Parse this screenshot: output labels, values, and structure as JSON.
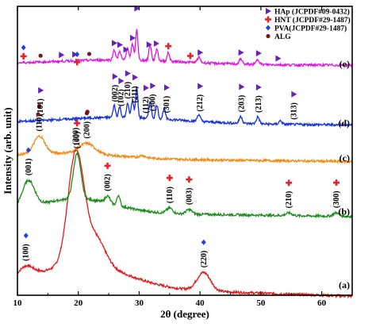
{
  "chart_data": {
    "type": "line",
    "xlabel": "2θ (degree)",
    "ylabel": "Intensity (arb. unit)",
    "xlim": [
      10,
      65
    ],
    "xticks": [
      10,
      20,
      30,
      40,
      50,
      60
    ],
    "y_ticks_shown": false,
    "grid": false,
    "legend_position": "top-right",
    "legend": [
      {
        "label": "HAp (JCPDF#09-0432)",
        "marker": "triangle-right",
        "color": "#6a1fb8"
      },
      {
        "label": "HNT (JCPDF#29-1487)",
        "marker": "cross",
        "color": "#e8202a"
      },
      {
        "label": "PVA(JCPDF#29-1487)",
        "marker": "diamond",
        "color": "#1f3fd8"
      },
      {
        "label": "ALG",
        "marker": "circle",
        "color": "#7a1616"
      }
    ],
    "series": [
      {
        "name": "(a)",
        "color": "#e01818",
        "baseline": 0,
        "peaks": [
          {
            "x": 11.4,
            "height": 0.6,
            "width": 1.2
          },
          {
            "x": 19.6,
            "height": 6.4,
            "width": 1.3
          },
          {
            "x": 22.8,
            "height": 1.6,
            "width": 1.6
          },
          {
            "x": 40.6,
            "height": 1.05,
            "width": 1.1
          }
        ],
        "hump": {
          "x": 21,
          "height": 1.3,
          "width": 7
        },
        "slope": -0.012,
        "annotations": [
          {
            "x": 11.4,
            "label": "(100)",
            "marker": "diamond"
          },
          {
            "x": 19.6,
            "label": "(200)",
            "marker": "diamond"
          },
          {
            "x": 40.6,
            "label": "(220)",
            "marker": "diamond"
          }
        ]
      },
      {
        "name": "(b)",
        "color": "#1c8c1c",
        "baseline": 4.2,
        "peaks": [
          {
            "x": 11.8,
            "height": 1.5,
            "width": 1.0
          },
          {
            "x": 19.8,
            "height": 2.6,
            "width": 0.6
          },
          {
            "x": 24.8,
            "height": 0.4,
            "width": 0.4
          },
          {
            "x": 26.6,
            "height": 0.6,
            "width": 0.25
          },
          {
            "x": 35.0,
            "height": 0.3,
            "width": 0.5
          },
          {
            "x": 38.2,
            "height": 0.25,
            "width": 0.5
          },
          {
            "x": 54.6,
            "height": 0.15,
            "width": 0.5
          },
          {
            "x": 62.4,
            "height": 0.2,
            "width": 0.5
          }
        ],
        "hump": {
          "x": 20,
          "height": 0.8,
          "width": 6
        },
        "slope": -0.005,
        "annotations": [
          {
            "x": 11.8,
            "label": "(001)",
            "marker": "diamond"
          },
          {
            "x": 19.8,
            "label": "(100)",
            "marker": "cross"
          },
          {
            "x": 24.8,
            "label": "(002)",
            "marker": "cross"
          },
          {
            "x": 35.0,
            "label": "(110)",
            "marker": "cross"
          },
          {
            "x": 38.2,
            "label": "(003)",
            "marker": "cross"
          },
          {
            "x": 54.6,
            "label": "(210)",
            "marker": "cross"
          },
          {
            "x": 62.4,
            "label": "(300)",
            "marker": "cross"
          }
        ]
      },
      {
        "name": "(c)",
        "color": "#f08a10",
        "baseline": 7.3,
        "peaks": [
          {
            "x": 13.6,
            "height": 1.0,
            "width": 0.9
          },
          {
            "x": 21.4,
            "height": 0.6,
            "width": 1.3
          },
          {
            "x": 30.5,
            "height": 0.12,
            "width": 0.5
          }
        ],
        "hump": {
          "x": 18,
          "height": 0.3,
          "width": 8
        },
        "slope": -0.004,
        "annotations": [
          {
            "x": 13.6,
            "label": "(110)",
            "marker": "circle"
          },
          {
            "x": 21.4,
            "label": "(200)",
            "marker": "circle"
          }
        ]
      },
      {
        "name": "(d)",
        "color": "#1430d8",
        "baseline": 9.3,
        "peaks": [
          {
            "x": 25.9,
            "height": 0.7,
            "width": 0.2
          },
          {
            "x": 26.8,
            "height": 0.6,
            "width": 0.2
          },
          {
            "x": 28.1,
            "height": 0.8,
            "width": 0.2
          },
          {
            "x": 28.9,
            "height": 1.0,
            "width": 0.2
          },
          {
            "x": 29.6,
            "height": 1.8,
            "width": 0.18
          },
          {
            "x": 31.8,
            "height": 1.0,
            "width": 0.2
          },
          {
            "x": 32.9,
            "height": 0.8,
            "width": 0.2
          },
          {
            "x": 34.1,
            "height": 0.6,
            "width": 0.2
          },
          {
            "x": 39.8,
            "height": 0.4,
            "width": 0.25
          },
          {
            "x": 46.7,
            "height": 0.4,
            "width": 0.25
          },
          {
            "x": 49.5,
            "height": 0.4,
            "width": 0.25
          },
          {
            "x": 53.2,
            "height": 0.2,
            "width": 0.25
          }
        ],
        "hump": {
          "x": 27,
          "height": 0.35,
          "width": 10
        },
        "slope": -0.002,
        "annotations": [
          {
            "x": 13.8,
            "label": "(101)",
            "marker": "triangle"
          },
          {
            "x": 26.0,
            "label": "(002)",
            "marker": "triangle"
          },
          {
            "x": 27.0,
            "label": "(102)",
            "marker": "triangle"
          },
          {
            "x": 28.1,
            "label": "(210)",
            "marker": "triangle"
          },
          {
            "x": 29.3,
            "label": "(211)",
            "marker": "triangle"
          },
          {
            "x": 31.1,
            "label": "(112)",
            "marker": "triangle"
          },
          {
            "x": 32.2,
            "label": "(300)",
            "marker": "triangle"
          },
          {
            "x": 34.5,
            "label": "(301)",
            "marker": "triangle"
          },
          {
            "x": 40.0,
            "label": "(212)",
            "marker": "triangle"
          },
          {
            "x": 46.8,
            "label": "(203)",
            "marker": "triangle"
          },
          {
            "x": 49.6,
            "label": "(213)",
            "marker": "triangle"
          },
          {
            "x": 55.4,
            "label": "(313)",
            "marker": "triangle"
          }
        ],
        "extra_markers": [
          {
            "x": 13.4,
            "marker": "circle"
          },
          {
            "x": 21.5,
            "marker": "circle"
          }
        ]
      },
      {
        "name": "(e)",
        "color": "#e016e0",
        "baseline": 12.7,
        "peaks": [
          {
            "x": 25.9,
            "height": 0.6,
            "width": 0.2
          },
          {
            "x": 26.8,
            "height": 0.5,
            "width": 0.2
          },
          {
            "x": 28.1,
            "height": 0.7,
            "width": 0.2
          },
          {
            "x": 28.9,
            "height": 0.9,
            "width": 0.2
          },
          {
            "x": 29.6,
            "height": 1.8,
            "width": 0.18
          },
          {
            "x": 31.8,
            "height": 0.9,
            "width": 0.2
          },
          {
            "x": 32.9,
            "height": 0.7,
            "width": 0.2
          },
          {
            "x": 34.8,
            "height": 0.5,
            "width": 0.2
          },
          {
            "x": 39.8,
            "height": 0.3,
            "width": 0.25
          },
          {
            "x": 46.7,
            "height": 0.3,
            "width": 0.25
          },
          {
            "x": 49.5,
            "height": 0.3,
            "width": 0.25
          }
        ],
        "hump": {
          "x": 27,
          "height": 0.25,
          "width": 10
        },
        "slope": -0.0015,
        "annotations": [],
        "extra_markers": [
          {
            "x": 11.0,
            "marker": "cross"
          },
          {
            "x": 11.0,
            "marker": "diamond",
            "dy": 0.5
          },
          {
            "x": 13.8,
            "marker": "circle"
          },
          {
            "x": 17.2,
            "marker": "triangle"
          },
          {
            "x": 19.4,
            "marker": "triangle"
          },
          {
            "x": 19.8,
            "marker": "diamond"
          },
          {
            "x": 19.8,
            "marker": "cross",
            "dy": -0.45
          },
          {
            "x": 21.8,
            "marker": "circle"
          },
          {
            "x": 25.9,
            "marker": "triangle"
          },
          {
            "x": 26.8,
            "marker": "triangle"
          },
          {
            "x": 27.8,
            "marker": "triangle"
          },
          {
            "x": 28.9,
            "marker": "triangle"
          },
          {
            "x": 29.6,
            "marker": "triangle",
            "dy": 0.8
          },
          {
            "x": 31.6,
            "marker": "triangle"
          },
          {
            "x": 32.8,
            "marker": "triangle"
          },
          {
            "x": 34.8,
            "marker": "cross"
          },
          {
            "x": 38.4,
            "marker": "cross"
          },
          {
            "x": 40.0,
            "marker": "triangle"
          },
          {
            "x": 46.7,
            "marker": "triangle"
          },
          {
            "x": 49.6,
            "marker": "triangle"
          },
          {
            "x": 52.8,
            "marker": "triangle"
          }
        ]
      }
    ]
  }
}
